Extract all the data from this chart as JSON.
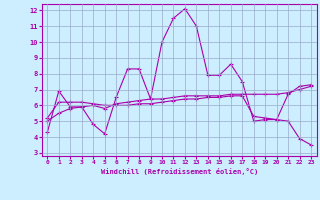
{
  "xlabel": "Windchill (Refroidissement éolien,°C)",
  "background_color": "#cceeff",
  "line_color": "#aa00aa",
  "grid_color": "#99aacc",
  "xlim": [
    -0.5,
    23.5
  ],
  "ylim": [
    2.8,
    12.4
  ],
  "yticks": [
    3,
    4,
    5,
    6,
    7,
    8,
    9,
    10,
    11,
    12
  ],
  "xticks": [
    0,
    1,
    2,
    3,
    4,
    5,
    6,
    7,
    8,
    9,
    10,
    11,
    12,
    13,
    14,
    15,
    16,
    17,
    18,
    19,
    20,
    21,
    22,
    23
  ],
  "line1_x": [
    0,
    1,
    2,
    3,
    4,
    5,
    6,
    7,
    8,
    9,
    10,
    11,
    12,
    13,
    14,
    15,
    16,
    17,
    18,
    19,
    20,
    21,
    22,
    23
  ],
  "line1_y": [
    4.3,
    6.9,
    5.9,
    5.9,
    4.8,
    4.2,
    6.5,
    8.3,
    8.3,
    6.4,
    10.0,
    11.5,
    12.1,
    11.0,
    7.9,
    7.9,
    8.6,
    7.5,
    5.0,
    5.1,
    5.1,
    5.0,
    3.9,
    3.5
  ],
  "line2_x": [
    0,
    1,
    2,
    3,
    4,
    5,
    6,
    7,
    8,
    9,
    10,
    11,
    12,
    13,
    14,
    15,
    16,
    17,
    18,
    19,
    20,
    21,
    22,
    23
  ],
  "line2_y": [
    5.0,
    5.5,
    5.8,
    5.9,
    6.0,
    5.8,
    6.1,
    6.2,
    6.3,
    6.4,
    6.4,
    6.5,
    6.6,
    6.6,
    6.6,
    6.6,
    6.7,
    6.7,
    6.7,
    6.7,
    6.7,
    6.8,
    7.0,
    7.2
  ],
  "line3_x": [
    0,
    1,
    2,
    3,
    4,
    5,
    6,
    7,
    8,
    9,
    10,
    11,
    12,
    13,
    14,
    15,
    16,
    17,
    18,
    19,
    20,
    21,
    22,
    23
  ],
  "line3_y": [
    5.2,
    6.2,
    6.2,
    6.2,
    6.1,
    6.0,
    6.0,
    6.0,
    6.1,
    6.1,
    6.2,
    6.3,
    6.4,
    6.4,
    6.5,
    6.5,
    6.6,
    6.6,
    5.3,
    5.2,
    5.1,
    6.7,
    7.2,
    7.3
  ]
}
